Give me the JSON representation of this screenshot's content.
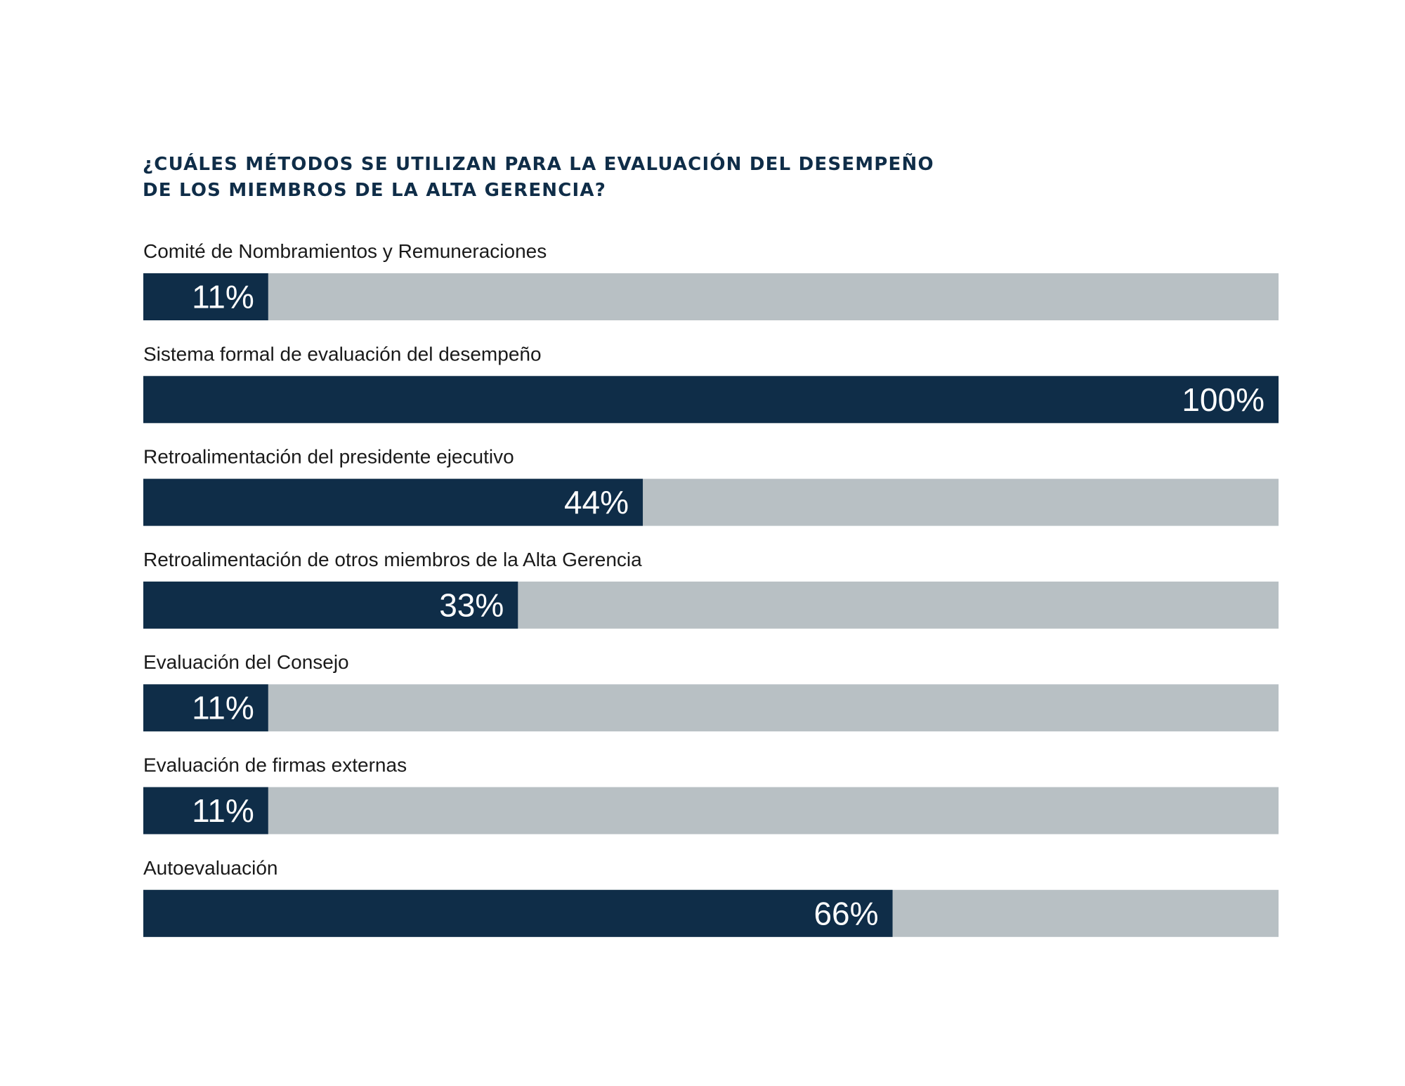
{
  "chart_data": {
    "type": "bar",
    "orientation": "horizontal",
    "title_lines": [
      "¿CUÁLES MÉTODOS SE UTILIZAN PARA LA EVALUACIÓN DEL DESEMPEÑO",
      "DE LOS MIEMBROS DE LA ALTA GERENCIA?"
    ],
    "categories": [
      "Comité de Nombramientos y Remuneraciones",
      "Sistema formal de evaluación del desempeño",
      "Retroalimentación del presidente ejecutivo",
      "Retroalimentación de otros miembros de la Alta Gerencia",
      "Evaluación del Consejo",
      "Evaluación de firmas externas",
      "Autoevaluación"
    ],
    "values": [
      11,
      100,
      44,
      33,
      11,
      11,
      66
    ],
    "value_labels": [
      "11%",
      "100%",
      "44%",
      "33%",
      "11%",
      "11%",
      "66%"
    ],
    "xlim": [
      0,
      100
    ],
    "grid": false,
    "legend": "none",
    "colors": {
      "bar": "#0f2d48",
      "track": "#b8c0c4",
      "title": "#0f2d48",
      "label": "#1a1a1a",
      "value_text": "#ffffff"
    }
  }
}
